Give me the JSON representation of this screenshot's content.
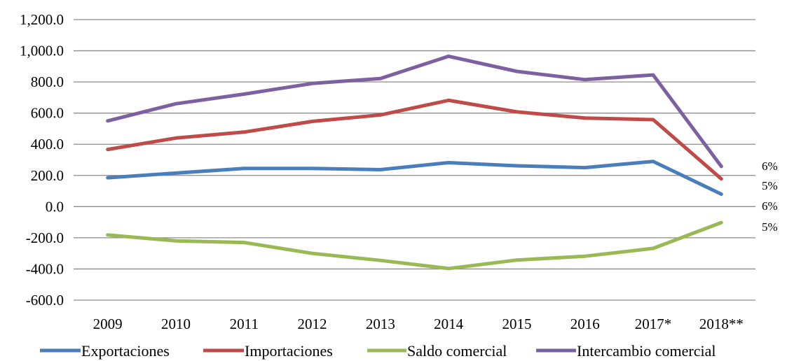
{
  "chart_data": {
    "type": "line",
    "categories": [
      "2009",
      "2010",
      "2011",
      "2012",
      "2013",
      "2014",
      "2015",
      "2016",
      "2017*",
      "2018**"
    ],
    "ylim": [
      -600,
      1200
    ],
    "ytick_values": [
      -600,
      -400,
      -200,
      0,
      200,
      400,
      600,
      800,
      1000,
      1200
    ],
    "ytick_labels": [
      "-600.0",
      "-400.0",
      "-200.0",
      "0.0",
      "200.0",
      "400.0",
      "600.0",
      "800.0",
      "1,000.0",
      "1,200.0"
    ],
    "grid": true,
    "legend_position": "bottom",
    "series": [
      {
        "name": "Exportaciones",
        "color": "#4a7ebb",
        "values": [
          185,
          215,
          245,
          245,
          237,
          282,
          262,
          250,
          290,
          80
        ]
      },
      {
        "name": "Importaciones",
        "color": "#be4b48",
        "values": [
          367,
          440,
          478,
          547,
          588,
          682,
          608,
          568,
          558,
          178
        ]
      },
      {
        "name": "Saldo comercial",
        "color": "#98b954",
        "values": [
          -182,
          -220,
          -230,
          -300,
          -345,
          -397,
          -343,
          -318,
          -268,
          -102
        ]
      },
      {
        "name": "Intercambio comercial",
        "color": "#7d60a0",
        "values": [
          550,
          660,
          722,
          790,
          822,
          965,
          868,
          815,
          845,
          258
        ]
      }
    ],
    "annotations": [
      "6%",
      "5%",
      "6%",
      "5%"
    ]
  }
}
